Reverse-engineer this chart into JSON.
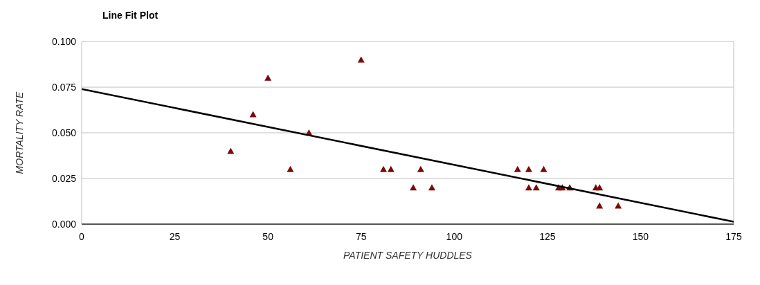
{
  "chart_data": {
    "type": "scatter",
    "title": "Line Fit Plot",
    "xlabel": "PATIENT SAFETY HUDDLES",
    "ylabel": "MORTALITY RATE",
    "xlim": [
      0,
      175
    ],
    "xticks": [
      0,
      25,
      50,
      75,
      100,
      125,
      150,
      175
    ],
    "ylim": [
      0,
      0.1
    ],
    "yticks": [
      {
        "value": 0,
        "label": "0.000"
      },
      {
        "value": 0.025,
        "label": "0.025"
      },
      {
        "value": 0.05,
        "label": "0.050"
      },
      {
        "value": 0.075,
        "label": "0.075"
      },
      {
        "value": 0.1,
        "label": "0.100"
      }
    ],
    "grid": true,
    "legend": false,
    "series": [
      {
        "marker": "triangle",
        "color": "#7b0a0a",
        "x": [
          40,
          46,
          50,
          56,
          61,
          75,
          81,
          83,
          89,
          91,
          94,
          117,
          120,
          124,
          120,
          122,
          128,
          129,
          131,
          138,
          139,
          139,
          144
        ],
        "values": [
          0.04,
          0.06,
          0.08,
          0.03,
          0.05,
          0.09,
          0.03,
          0.03,
          0.02,
          0.03,
          0.02,
          0.03,
          0.03,
          0.03,
          0.02,
          0.02,
          0.02,
          0.02,
          0.02,
          0.02,
          0.02,
          0.01,
          0.01
        ]
      },
      {
        "type": "line",
        "color": "#000000",
        "x": [
          0,
          175
        ],
        "values": [
          0.074,
          0.0013
        ]
      }
    ]
  }
}
